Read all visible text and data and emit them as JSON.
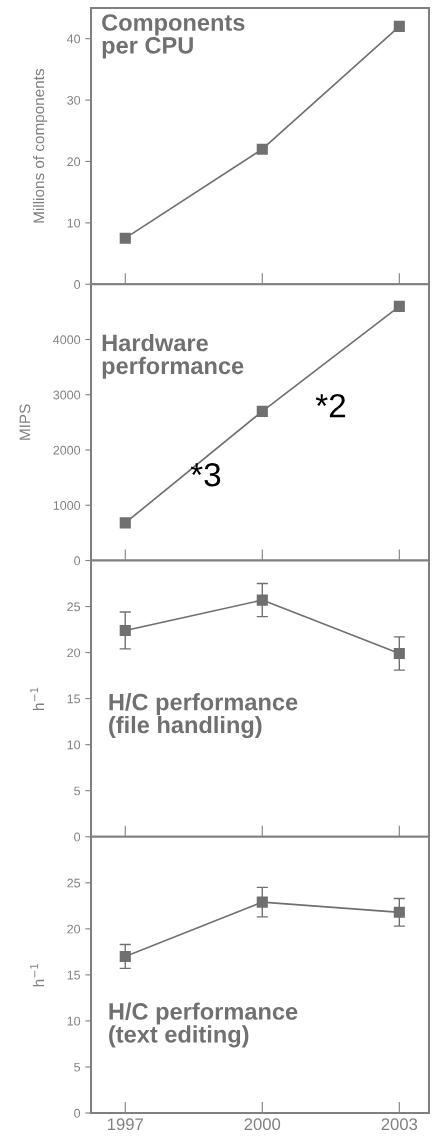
{
  "chart_data": [
    {
      "type": "line",
      "title": "Components\nper CPU",
      "ylabel": "Millions of components",
      "x": [
        1997,
        2000,
        2003
      ],
      "values": [
        7.5,
        22,
        42
      ],
      "color": "#707070",
      "marker": "square",
      "xlim": [
        1996.25,
        2003.65
      ],
      "xticks": [
        {
          "value": 1997,
          "label": null
        },
        {
          "value": 2000,
          "label": null
        },
        {
          "value": 2003,
          "label": null
        }
      ],
      "ylim": [
        0,
        45
      ],
      "yticks": [
        0,
        10,
        20,
        30,
        40
      ],
      "tick_labels": "y"
    },
    {
      "type": "line",
      "title": "Hardware\nperformance",
      "ylabel": "MIPS",
      "x": [
        1997,
        2000,
        2003
      ],
      "values": [
        680,
        2700,
        4600
      ],
      "color": "#707070",
      "marker": "square",
      "xlim": [
        1996.25,
        2003.65
      ],
      "xticks": [
        {
          "value": 1997,
          "label": null
        },
        {
          "value": 2000,
          "label": null
        },
        {
          "value": 2003,
          "label": null
        }
      ],
      "ylim": [
        0,
        5000
      ],
      "yticks": [
        0,
        1000,
        2000,
        3000,
        4000
      ],
      "tick_labels": "y",
      "annotations": [
        "*3",
        "*2"
      ]
    },
    {
      "type": "line",
      "title": "H/C performance\n(file handling)",
      "ylabel": "h$^{−1}$",
      "x": [
        1997,
        2000,
        2003
      ],
      "values": [
        22.4,
        25.7,
        19.9
      ],
      "errors": [
        2,
        1.8,
        1.8
      ],
      "color": "#707070",
      "marker": "square",
      "xlim": [
        1996.25,
        2003.65
      ],
      "xticks": [
        {
          "value": 1997,
          "label": null
        },
        {
          "value": 2000,
          "label": null
        },
        {
          "value": 2003,
          "label": null
        }
      ],
      "ylim": [
        0,
        30
      ],
      "yticks": [
        0,
        5,
        10,
        15,
        20,
        25
      ],
      "tick_labels": "y"
    },
    {
      "type": "line",
      "title": "H/C performance\n(text editing)",
      "ylabel": "h$^{−1}$",
      "x": [
        1997,
        2000,
        2003
      ],
      "values": [
        17.0,
        22.9,
        21.8
      ],
      "errors": [
        1.3,
        1.6,
        1.5
      ],
      "color": "#707070",
      "marker": "square",
      "xlim": [
        1996.25,
        2003.65
      ],
      "xticks": [
        1997,
        2000,
        2003
      ],
      "ylim": [
        0,
        30
      ],
      "yticks": [
        0,
        5,
        10,
        15,
        20,
        25
      ]
    }
  ]
}
